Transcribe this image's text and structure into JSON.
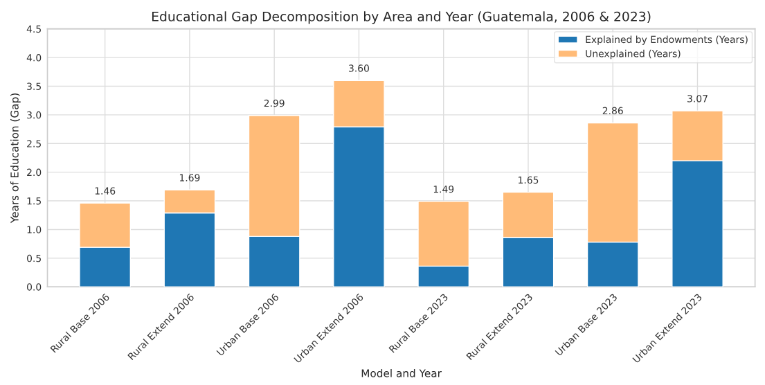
{
  "chart_data": {
    "type": "bar",
    "title": "Educational Gap Decomposition by Area and Year (Guatemala, 2006 & 2023)",
    "xlabel": "Model and Year",
    "ylabel": "Years of Education (Gap)",
    "categories": [
      "Rural Base 2006",
      "Rural Extend 2006",
      "Urban Base 2006",
      "Urban Extend 2006",
      "Rural Base 2023",
      "Rural Extend 2023",
      "Urban Base 2023",
      "Urban Extend 2023"
    ],
    "series": [
      {
        "name": "Explained by Endowments (Years)",
        "color": "#1f77b4",
        "values": [
          0.69,
          1.29,
          0.88,
          2.79,
          0.36,
          0.86,
          0.78,
          2.2
        ]
      },
      {
        "name": "Unexplained (Years)",
        "color": "#ffbb78",
        "values": [
          0.77,
          0.4,
          2.11,
          0.81,
          1.13,
          0.79,
          2.08,
          0.87
        ]
      }
    ],
    "stacked": true,
    "totals": [
      "1.46",
      "1.69",
      "2.99",
      "3.60",
      "1.49",
      "1.65",
      "2.86",
      "3.07"
    ],
    "ylim": [
      0,
      4.5
    ],
    "yticks": [
      {
        "value": 0,
        "label": "0.0"
      },
      0.5,
      {
        "value": 1,
        "label": "1.0"
      },
      1.5,
      {
        "value": 2,
        "label": "2.0"
      },
      2.5,
      {
        "value": 3,
        "label": "3.0"
      },
      3.5,
      {
        "value": 4,
        "label": "4.0"
      },
      4.5
    ],
    "grid": true,
    "legend": "top right"
  }
}
